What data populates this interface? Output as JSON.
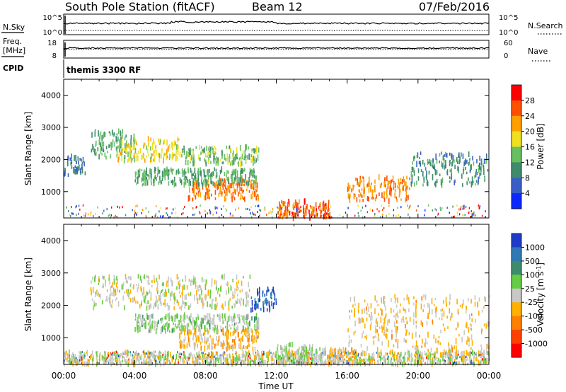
{
  "header": {
    "station": "South Pole Station (fitACF)",
    "beam": "Beam 12",
    "date": "07/Feb/2016"
  },
  "top_panels": {
    "nsky_label": "N.Sky",
    "nsky_ticks": [
      "10^5",
      "10^0"
    ],
    "nsearch_label": "N.Search",
    "nsearch_ticks": [
      "10^5",
      "10^0"
    ],
    "freq_label": "Freq.",
    "freq_unit": "[MHz]",
    "freq_ticks": [
      "18",
      "8"
    ],
    "nave_label": "Nave",
    "nave_ticks": [
      "60",
      "0"
    ],
    "cpid_label": "CPID",
    "cpid_value": "themis 3300 RF"
  },
  "axes": {
    "x_ticks": [
      "00:00",
      "04:00",
      "08:00",
      "12:00",
      "16:00",
      "20:00",
      "00:00"
    ],
    "x_title": "Time UT",
    "y_ticks": [
      "1000",
      "2000",
      "3000",
      "4000"
    ],
    "y_title": "Slant Range [km]"
  },
  "colorbars": {
    "power": {
      "title": "Power [dB]",
      "labels": [
        "4",
        "8",
        "12",
        "16",
        "20",
        "24",
        "28"
      ],
      "colors": [
        "#0a28ff",
        "#3a5ec8",
        "#3e8c6c",
        "#66c060",
        "#f0e020",
        "#ffa000",
        "#ff5000",
        "#ff0000"
      ]
    },
    "velocity": {
      "title": "Velocity [m s",
      "title_sup": "-1",
      "title_end": "]",
      "labels": [
        "1000",
        "500",
        "100",
        "25",
        "-25",
        "-100",
        "-500",
        "-1000"
      ],
      "colors": [
        "#1e3cc8",
        "#2e7ab4",
        "#3e8c6c",
        "#66cc44",
        "#c8c8c8",
        "#ffb000",
        "#ff8000",
        "#ff4000",
        "#ff0000"
      ]
    }
  },
  "chart_data": [
    {
      "type": "heatmap",
      "name": "Power",
      "xlabel": "Time UT",
      "ylabel": "Slant Range [km]",
      "xlim_hours": [
        0,
        24
      ],
      "ylim_km": [
        180,
        4500
      ],
      "colorbar_range_db": [
        0,
        32
      ],
      "regions": [
        {
          "t0": 1.5,
          "t1": 4.0,
          "r0": 2050,
          "r1": 2900,
          "value": 12
        },
        {
          "t0": 3.0,
          "t1": 6.5,
          "r0": 1950,
          "r1": 2650,
          "value": 18
        },
        {
          "t0": 6.5,
          "t1": 11.0,
          "r0": 1850,
          "r1": 2400,
          "value": 14
        },
        {
          "t0": 7.0,
          "t1": 11.0,
          "r0": 750,
          "r1": 1350,
          "value": 24
        },
        {
          "t0": 4.0,
          "t1": 11.0,
          "r0": 1200,
          "r1": 1700,
          "value": 12
        },
        {
          "t0": 12.0,
          "t1": 15.0,
          "r0": 180,
          "r1": 700,
          "value": 26
        },
        {
          "t0": 16.0,
          "t1": 19.5,
          "r0": 700,
          "r1": 1450,
          "value": 24
        },
        {
          "t0": 19.5,
          "t1": 24.0,
          "r0": 1200,
          "r1": 2200,
          "value": 10
        },
        {
          "t0": 0.0,
          "t1": 1.2,
          "r0": 1500,
          "r1": 2100,
          "value": 8
        }
      ]
    },
    {
      "type": "heatmap",
      "name": "Velocity",
      "xlabel": "Time UT",
      "ylabel": "Slant Range [km]",
      "xlim_hours": [
        0,
        24
      ],
      "ylim_km": [
        180,
        4500
      ],
      "colorbar_range_ms": [
        -1000,
        1000
      ],
      "regions": [
        {
          "t0": 1.5,
          "t1": 10.5,
          "r0": 1900,
          "r1": 2900,
          "value": 0
        },
        {
          "t0": 10.5,
          "t1": 12.0,
          "r0": 1850,
          "r1": 2500,
          "value": 800
        },
        {
          "t0": 4.0,
          "t1": 11.0,
          "r0": 1200,
          "r1": 1700,
          "value": 150
        },
        {
          "t0": 6.5,
          "t1": 11.0,
          "r0": 650,
          "r1": 1250,
          "value": -200
        },
        {
          "t0": 12.0,
          "t1": 15.0,
          "r0": 180,
          "r1": 800,
          "value": 120
        },
        {
          "t0": 15.0,
          "t1": 16.5,
          "r0": 250,
          "r1": 650,
          "value": -200
        },
        {
          "t0": 16.0,
          "t1": 24.0,
          "r0": 500,
          "r1": 2300,
          "value": -150
        },
        {
          "t0": 0.0,
          "t1": 24.0,
          "r0": 180,
          "r1": 550,
          "value": 10
        }
      ]
    }
  ]
}
